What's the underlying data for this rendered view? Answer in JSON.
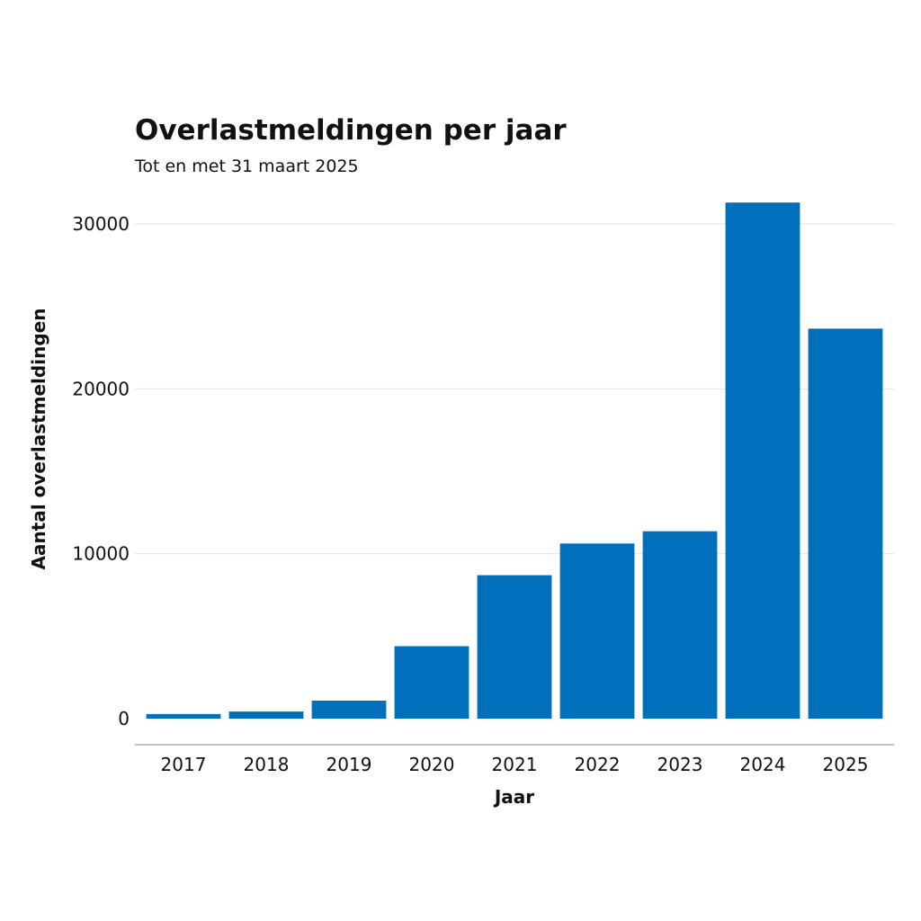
{
  "chart_data": {
    "type": "bar",
    "title": "Overlastmeldingen per jaar",
    "subtitle": "Tot en met 31 maart 2025",
    "xlabel": "Jaar",
    "ylabel": "Aantal overlastmeldingen",
    "categories": [
      "2017",
      "2018",
      "2019",
      "2020",
      "2021",
      "2022",
      "2023",
      "2024",
      "2025"
    ],
    "values": [
      280,
      430,
      1090,
      4390,
      8700,
      10620,
      11360,
      31300,
      23650
    ],
    "ylim": [
      0,
      32000
    ],
    "yticks": [
      0,
      10000,
      20000,
      30000
    ],
    "grid": true,
    "legend": "none",
    "colors": {
      "bar": "#0070BC"
    }
  }
}
